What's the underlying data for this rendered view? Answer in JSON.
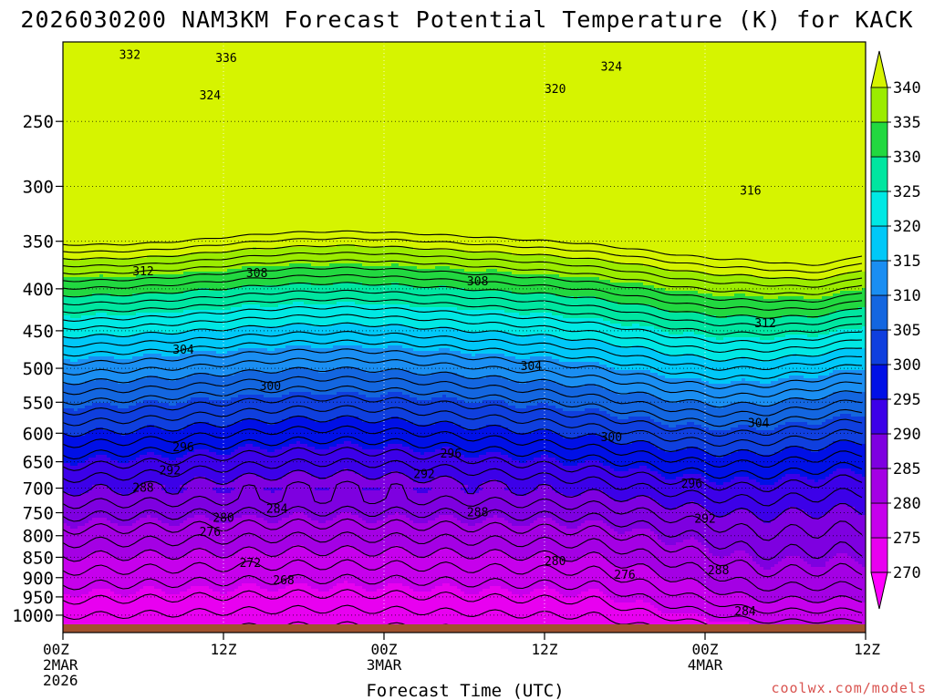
{
  "title": "2026030200 NAM3KM Forecast Potential Temperature (K) for KACK",
  "watermark": "coolwx.com/models",
  "watermark_color": "#d9534f",
  "chart_data": {
    "type": "heatmap",
    "title": "2026030200 NAM3KM Forecast Potential Temperature (K) for KACK",
    "xlabel": "Forecast Time (UTC)",
    "ylabel": "",
    "x_range_hours": [
      0,
      60
    ],
    "y_range_hpa": [
      200,
      1050
    ],
    "y_scale": "log-pressure",
    "x_ticks": [
      {
        "hour": 0,
        "lines": [
          "00Z",
          "2MAR",
          "2026"
        ]
      },
      {
        "hour": 12,
        "lines": [
          "12Z"
        ]
      },
      {
        "hour": 24,
        "lines": [
          "00Z",
          "3MAR"
        ]
      },
      {
        "hour": 36,
        "lines": [
          "12Z"
        ]
      },
      {
        "hour": 48,
        "lines": [
          "00Z",
          "4MAR"
        ]
      },
      {
        "hour": 60,
        "lines": [
          "12Z"
        ]
      }
    ],
    "y_ticks": [
      250,
      300,
      350,
      400,
      450,
      500,
      550,
      600,
      650,
      700,
      750,
      800,
      850,
      900,
      950,
      1000
    ],
    "colorbar": {
      "levels": [
        270,
        275,
        280,
        285,
        290,
        295,
        300,
        305,
        310,
        315,
        320,
        325,
        330,
        335,
        340
      ],
      "colors": [
        "#ff00ff",
        "#e800f0",
        "#c600ec",
        "#a400e4",
        "#7e00e0",
        "#3c00e8",
        "#0010e6",
        "#0f3fde",
        "#1366e0",
        "#1a8ef2",
        "#00c8f8",
        "#00e8e4",
        "#00e6a0",
        "#22d840",
        "#9bec00",
        "#d6f400"
      ],
      "extend": "both"
    },
    "isotherm_labels": [
      {
        "hour": 5.0,
        "hpa": 207,
        "value": "332"
      },
      {
        "hour": 12.2,
        "hpa": 209,
        "value": "336"
      },
      {
        "hour": 11.0,
        "hpa": 232,
        "value": "324"
      },
      {
        "hour": 41.0,
        "hpa": 214,
        "value": "324"
      },
      {
        "hour": 36.8,
        "hpa": 228,
        "value": "320"
      },
      {
        "hour": 51.4,
        "hpa": 303,
        "value": "316"
      },
      {
        "hour": 52.5,
        "hpa": 440,
        "value": "312"
      },
      {
        "hour": 6.0,
        "hpa": 380,
        "value": "312"
      },
      {
        "hour": 14.5,
        "hpa": 382,
        "value": "308"
      },
      {
        "hour": 31.0,
        "hpa": 391,
        "value": "308"
      },
      {
        "hour": 9.0,
        "hpa": 474,
        "value": "304"
      },
      {
        "hour": 35.0,
        "hpa": 496,
        "value": "304"
      },
      {
        "hour": 52.0,
        "hpa": 582,
        "value": "304"
      },
      {
        "hour": 15.5,
        "hpa": 525,
        "value": "300"
      },
      {
        "hour": 41.0,
        "hpa": 606,
        "value": "300"
      },
      {
        "hour": 9.0,
        "hpa": 623,
        "value": "296"
      },
      {
        "hour": 29.0,
        "hpa": 634,
        "value": "296"
      },
      {
        "hour": 47.0,
        "hpa": 690,
        "value": "296"
      },
      {
        "hour": 8.0,
        "hpa": 665,
        "value": "292"
      },
      {
        "hour": 27.0,
        "hpa": 672,
        "value": "292"
      },
      {
        "hour": 48.0,
        "hpa": 762,
        "value": "292"
      },
      {
        "hour": 6.0,
        "hpa": 698,
        "value": "288"
      },
      {
        "hour": 31.0,
        "hpa": 748,
        "value": "288"
      },
      {
        "hour": 49.0,
        "hpa": 880,
        "value": "288"
      },
      {
        "hour": 16.0,
        "hpa": 740,
        "value": "284"
      },
      {
        "hour": 51.0,
        "hpa": 988,
        "value": "284"
      },
      {
        "hour": 12.0,
        "hpa": 760,
        "value": "280"
      },
      {
        "hour": 36.8,
        "hpa": 858,
        "value": "280"
      },
      {
        "hour": 11.0,
        "hpa": 790,
        "value": "276"
      },
      {
        "hour": 42.0,
        "hpa": 891,
        "value": "276"
      },
      {
        "hour": 14.0,
        "hpa": 862,
        "value": "272"
      },
      {
        "hour": 16.5,
        "hpa": 905,
        "value": "268"
      }
    ],
    "surface_color": "#a0522d",
    "grid": true
  }
}
